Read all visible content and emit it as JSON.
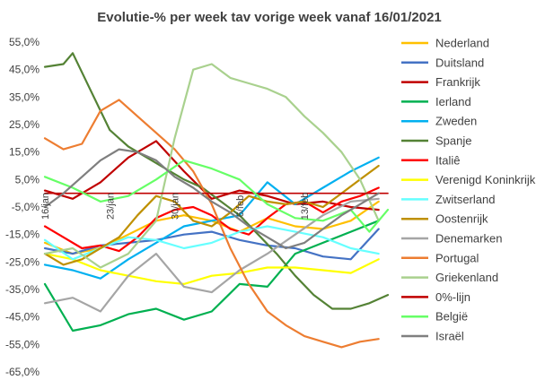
{
  "chart_data": {
    "type": "line",
    "title": "Evolutie-% per week tav vorige week vanaf 16/01/2021",
    "xlabel": "",
    "ylabel": "",
    "ylim": [
      -65,
      55
    ],
    "yticks": [
      "55,0%",
      "45,0%",
      "35,0%",
      "25,0%",
      "15,0%",
      "5,0%",
      "-5,0%",
      "-15,0%",
      "-25,0%",
      "-35,0%",
      "-45,0%",
      "-55,0%",
      "-65,0%"
    ],
    "y_tick_values": [
      55,
      45,
      35,
      25,
      15,
      5,
      -5,
      -15,
      -25,
      -35,
      -45,
      -55,
      -65
    ],
    "xlim": [
      0,
      37
    ],
    "x_tick_labels": [
      {
        "label": "16/jan",
        "x": 0
      },
      {
        "label": "23/jan",
        "x": 7
      },
      {
        "label": "30/jan",
        "x": 14
      },
      {
        "label": "6/feb",
        "x": 21
      },
      {
        "label": "13/feb",
        "x": 28
      }
    ],
    "grid": false,
    "legend_position": "right",
    "series": [
      {
        "name": "Nederland",
        "color": "#FFC000",
        "x": [
          0,
          3,
          6,
          9,
          12,
          15,
          18,
          21,
          24,
          27,
          30,
          33,
          36
        ],
        "values": [
          -18,
          -22,
          -20,
          -15,
          -10,
          -8,
          -10,
          -14,
          -9,
          -12,
          -13,
          -10,
          -3
        ]
      },
      {
        "name": "Duitsland",
        "color": "#4472C4",
        "x": [
          0,
          3,
          6,
          9,
          12,
          15,
          18,
          21,
          24,
          27,
          30,
          33,
          36
        ],
        "values": [
          -20,
          -22,
          -19,
          -18,
          -17,
          -15,
          -14,
          -17,
          -19,
          -20,
          -23,
          -24,
          -13
        ]
      },
      {
        "name": "Frankrijk",
        "color": "#C00000",
        "x": [
          0,
          3,
          6,
          9,
          12,
          15,
          18,
          21,
          24,
          27,
          30,
          33,
          36
        ],
        "values": [
          1,
          -2,
          4,
          13,
          19,
          8,
          -2,
          1,
          -1,
          -4,
          -3,
          -5,
          -6
        ]
      },
      {
        "name": "Ierland",
        "color": "#00B050",
        "x": [
          0,
          3,
          6,
          9,
          12,
          15,
          18,
          21,
          24,
          27,
          30,
          33,
          36
        ],
        "values": [
          -33,
          -50,
          -48,
          -44,
          -42,
          -46,
          -43,
          -33,
          -34,
          -22,
          -18,
          -14,
          -10
        ]
      },
      {
        "name": "Zweden",
        "color": "#00B0F0",
        "x": [
          0,
          3,
          6,
          9,
          12,
          15,
          18,
          21,
          24,
          27,
          30,
          33,
          36
        ],
        "values": [
          -26,
          -28,
          -31,
          -24,
          -18,
          -12,
          -10,
          -8,
          4,
          -4,
          2,
          8,
          13
        ]
      },
      {
        "name": "Spanje",
        "color": "#548235",
        "x": [
          0,
          2,
          3,
          5,
          7,
          9,
          11,
          13,
          15,
          17,
          19,
          21,
          23,
          25,
          27,
          29,
          31,
          33,
          35,
          37
        ],
        "values": [
          46,
          47,
          51,
          37,
          23,
          17,
          13,
          9,
          5,
          2,
          -3,
          -8,
          -15,
          -22,
          -30,
          -37,
          -42,
          -42,
          -40,
          -37
        ]
      },
      {
        "name": "Italiê",
        "color": "#FF0000",
        "x": [
          0,
          2,
          4,
          6,
          8,
          10,
          12,
          14,
          16,
          18,
          20,
          22,
          24,
          26,
          28,
          30,
          32,
          34,
          36
        ],
        "values": [
          -12,
          -16,
          -20,
          -19,
          -21,
          -16,
          -9,
          -6,
          -5,
          -8,
          -13,
          -15,
          -9,
          -4,
          -3,
          -7,
          -3,
          -1,
          2
        ]
      },
      {
        "name": "Verenigd Koninkrijk",
        "color": "#FFFF00",
        "x": [
          0,
          3,
          6,
          9,
          12,
          15,
          18,
          21,
          24,
          27,
          30,
          33,
          36
        ],
        "values": [
          -22,
          -24,
          -28,
          -30,
          -32,
          -33,
          -30,
          -29,
          -27,
          -27,
          -28,
          -29,
          -24
        ]
      },
      {
        "name": "Zwitserland",
        "color": "#66FFFF",
        "x": [
          0,
          3,
          6,
          9,
          12,
          15,
          18,
          21,
          24,
          27,
          30,
          33,
          36
        ],
        "values": [
          -17,
          -24,
          -20,
          -16,
          -17,
          -20,
          -18,
          -14,
          -12,
          -14,
          -16,
          -20,
          -22
        ]
      },
      {
        "name": "Oostenrijk",
        "color": "#BF9000",
        "x": [
          0,
          2,
          4,
          6,
          8,
          10,
          12,
          14,
          16,
          18,
          20,
          22,
          24,
          26,
          28,
          30,
          32,
          34,
          36
        ],
        "values": [
          -22,
          -26,
          -24,
          -20,
          -16,
          -8,
          -1,
          -3,
          -10,
          -12,
          -7,
          -1,
          -3,
          -4,
          -3,
          -5,
          0,
          5,
          10
        ]
      },
      {
        "name": "Denemarken",
        "color": "#A5A5A5",
        "x": [
          0,
          3,
          6,
          9,
          12,
          15,
          18,
          21,
          24,
          27,
          30,
          33,
          36
        ],
        "values": [
          -40,
          -38,
          -43,
          -30,
          -22,
          -34,
          -36,
          -28,
          -22,
          -15,
          -8,
          -3,
          -2
        ]
      },
      {
        "name": "Portugal",
        "color": "#ED7D31",
        "x": [
          0,
          2,
          4,
          6,
          8,
          10,
          12,
          14,
          16,
          18,
          20,
          22,
          24,
          26,
          28,
          30,
          32,
          34,
          36
        ],
        "values": [
          20,
          16,
          18,
          30,
          34,
          28,
          22,
          16,
          8,
          -4,
          -20,
          -33,
          -43,
          -48,
          -52,
          -54,
          -56,
          -54,
          -53
        ]
      },
      {
        "name": "Griekenland",
        "color": "#A9D18E",
        "x": [
          0,
          3,
          6,
          9,
          12,
          14,
          16,
          18,
          20,
          22,
          24,
          26,
          28,
          30,
          32,
          34,
          36
        ],
        "values": [
          -22,
          -20,
          -27,
          -22,
          -10,
          20,
          45,
          47,
          42,
          40,
          38,
          35,
          28,
          22,
          15,
          5,
          -10
        ]
      },
      {
        "name": "0%-lijn",
        "color": "#C00000",
        "x": [
          0,
          37
        ],
        "values": [
          0,
          0
        ]
      },
      {
        "name": "België",
        "color": "#66FF66",
        "x": [
          0,
          3,
          6,
          9,
          12,
          15,
          18,
          21,
          24,
          27,
          30,
          33,
          35,
          37
        ],
        "values": [
          6,
          2,
          -3,
          -1,
          5,
          12,
          9,
          5,
          -4,
          -9,
          -10,
          -6,
          -14,
          -6
        ]
      },
      {
        "name": "Israël",
        "color": "#7F7F7F",
        "x": [
          0,
          2,
          4,
          6,
          8,
          10,
          12,
          14,
          16,
          18,
          20,
          22,
          24,
          26,
          28,
          30,
          32,
          34,
          36
        ],
        "values": [
          -5,
          0,
          6,
          12,
          16,
          15,
          12,
          6,
          2,
          -3,
          -7,
          -12,
          -16,
          -20,
          -18,
          -13,
          -8,
          -4,
          0
        ]
      }
    ]
  }
}
